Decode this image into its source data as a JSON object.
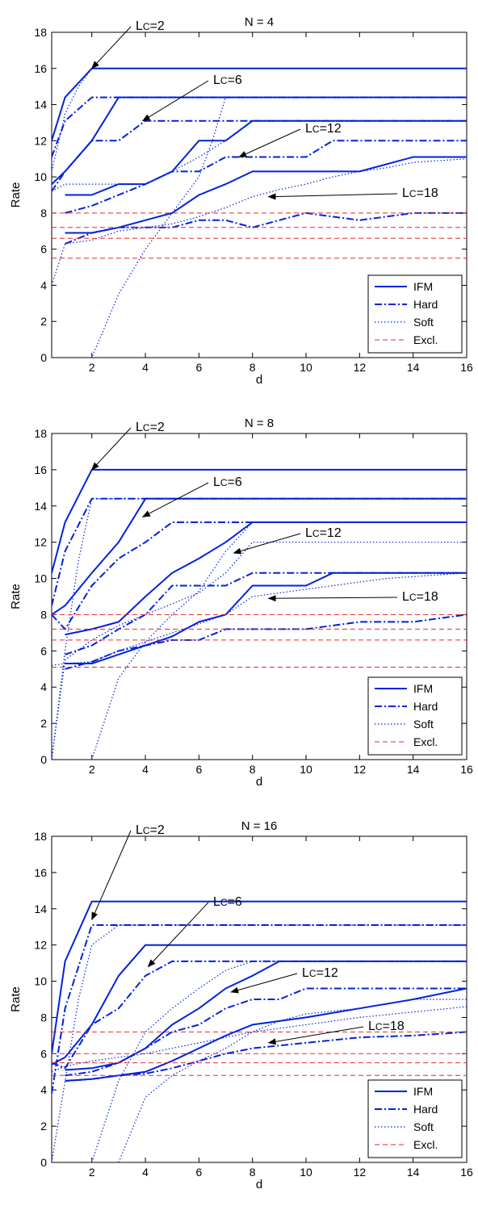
{
  "chart_data": [
    {
      "type": "line",
      "title": "N = 4",
      "xlabel": "d",
      "ylabel": "Rate",
      "xlim": [
        0.5,
        16
      ],
      "ylim": [
        0,
        18
      ],
      "xticks": [
        2,
        4,
        6,
        8,
        10,
        12,
        14,
        16
      ],
      "yticks": [
        0,
        2,
        4,
        6,
        8,
        10,
        12,
        14,
        16,
        18
      ],
      "legend": {
        "placement": "bottom-right",
        "entries": [
          "IFM",
          "Hard",
          "Soft",
          "Excl."
        ]
      },
      "annotations": [
        {
          "text": "LC=2",
          "points_to": [
            2,
            16
          ]
        },
        {
          "text": "LC=6",
          "points_to": [
            3.9,
            13.1
          ]
        },
        {
          "text": "LC=12",
          "points_to": [
            7.5,
            11.1
          ]
        },
        {
          "text": "LC=18",
          "points_to": [
            8.6,
            8.9
          ]
        }
      ],
      "series": [
        {
          "kind": "IFM",
          "x": [
            0.5,
            1,
            2,
            16
          ],
          "y": [
            12,
            14.4,
            16,
            16
          ]
        },
        {
          "kind": "Hard",
          "x": [
            0.5,
            1,
            2,
            16
          ],
          "y": [
            11.1,
            13.1,
            14.4,
            14.4
          ]
        },
        {
          "kind": "Soft",
          "x": [
            0.5,
            1,
            1.5,
            2,
            16
          ],
          "y": [
            10.3,
            13.5,
            15,
            16,
            16
          ]
        },
        {
          "kind": "IFM",
          "x": [
            0.5,
            1,
            2,
            3,
            16
          ],
          "y": [
            9.6,
            10.3,
            12,
            14.4,
            14.4
          ]
        },
        {
          "kind": "Hard",
          "x": [
            0.5,
            1,
            2,
            3,
            4,
            16
          ],
          "y": [
            9.2,
            10.3,
            12,
            12,
            13.1,
            13.1
          ]
        },
        {
          "kind": "Soft",
          "x": [
            0.5,
            1,
            2,
            3,
            4,
            5,
            6,
            6.5,
            7,
            16
          ],
          "y": [
            0,
            0,
            0,
            3.5,
            6,
            8,
            10,
            12,
            14.4,
            14.4
          ]
        },
        {
          "kind": "IFM",
          "x": [
            1,
            2,
            3,
            4,
            5,
            6,
            7,
            8,
            16
          ],
          "y": [
            9,
            9,
            9.6,
            9.6,
            10.3,
            12,
            12,
            13.1,
            13.1
          ]
        },
        {
          "kind": "Hard",
          "x": [
            1,
            2,
            3,
            4,
            5,
            6,
            7,
            8,
            9,
            10,
            11,
            12,
            16
          ],
          "y": [
            8,
            8.4,
            9,
            9.6,
            10.3,
            10.3,
            11.1,
            11.1,
            11.1,
            11.1,
            12,
            12,
            12
          ]
        },
        {
          "kind": "Soft",
          "x": [
            0.5,
            1,
            2,
            3,
            4,
            5,
            6,
            7,
            8,
            16
          ],
          "y": [
            9.2,
            9.6,
            9.6,
            9.6,
            9.6,
            10.3,
            11.1,
            12,
            13.1,
            13.1
          ]
        },
        {
          "kind": "IFM",
          "x": [
            1,
            2,
            3,
            4,
            5,
            6,
            7,
            8,
            12,
            14,
            16
          ],
          "y": [
            6.9,
            6.9,
            7.2,
            7.6,
            8,
            9,
            9.6,
            10.3,
            10.3,
            11.1,
            11.1
          ]
        },
        {
          "kind": "Hard",
          "x": [
            1,
            2,
            3,
            4,
            5,
            6,
            7,
            8,
            9,
            10,
            11,
            12,
            13,
            14,
            16
          ],
          "y": [
            6.3,
            6.9,
            7.2,
            7.2,
            7.2,
            7.6,
            7.6,
            7.2,
            7.6,
            8,
            7.8,
            7.6,
            7.8,
            8,
            8
          ]
        },
        {
          "kind": "Soft",
          "x": [
            0.5,
            1,
            2,
            3,
            4,
            5,
            6,
            7,
            8,
            9,
            10,
            11,
            12,
            13,
            14,
            16
          ],
          "y": [
            4,
            6.3,
            6.5,
            7,
            7.2,
            7.4,
            7.8,
            8.3,
            8.9,
            9.3,
            9.6,
            10,
            10.3,
            10.5,
            10.8,
            11
          ]
        },
        {
          "kind": "Excl.",
          "x": [
            0.5,
            16
          ],
          "y": [
            8,
            8
          ]
        },
        {
          "kind": "Excl.",
          "x": [
            0.5,
            16
          ],
          "y": [
            7.2,
            7.2
          ]
        },
        {
          "kind": "Excl.",
          "x": [
            0.5,
            16
          ],
          "y": [
            6.6,
            6.6
          ]
        },
        {
          "kind": "Excl.",
          "x": [
            0.5,
            16
          ],
          "y": [
            5.5,
            5.5
          ]
        }
      ]
    },
    {
      "type": "line",
      "title": "N = 8",
      "xlabel": "d",
      "ylabel": "Rate",
      "xlim": [
        0.5,
        16
      ],
      "ylim": [
        0,
        18
      ],
      "xticks": [
        2,
        4,
        6,
        8,
        10,
        12,
        14,
        16
      ],
      "yticks": [
        0,
        2,
        4,
        6,
        8,
        10,
        12,
        14,
        16,
        18
      ],
      "legend": {
        "placement": "bottom-right",
        "entries": [
          "IFM",
          "Hard",
          "Soft",
          "Excl."
        ]
      },
      "annotations": [
        {
          "text": "LC=2",
          "points_to": [
            2,
            16
          ]
        },
        {
          "text": "LC=6",
          "points_to": [
            3.9,
            13.4
          ]
        },
        {
          "text": "LC=12",
          "points_to": [
            7.3,
            11.4
          ]
        },
        {
          "text": "LC=18",
          "points_to": [
            8.6,
            8.9
          ]
        }
      ],
      "series": [
        {
          "kind": "IFM",
          "x": [
            0.5,
            1,
            2,
            16
          ],
          "y": [
            10.3,
            13.1,
            16,
            16
          ]
        },
        {
          "kind": "Hard",
          "x": [
            0.5,
            1,
            2,
            16
          ],
          "y": [
            8.5,
            11.5,
            14.4,
            14.4
          ]
        },
        {
          "kind": "Soft",
          "x": [
            0.5,
            1,
            1.5,
            2,
            3,
            4,
            16
          ],
          "y": [
            0,
            6,
            11,
            14.4,
            14.4,
            14.4,
            14.4
          ]
        },
        {
          "kind": "IFM",
          "x": [
            0.5,
            1,
            2,
            3,
            4,
            16
          ],
          "y": [
            8,
            8.5,
            10.3,
            12,
            14.4,
            14.4
          ]
        },
        {
          "kind": "Hard",
          "x": [
            0.5,
            1,
            2,
            3,
            4,
            5,
            16
          ],
          "y": [
            8,
            7.2,
            9.6,
            11.1,
            12,
            13.1,
            13.1
          ]
        },
        {
          "kind": "Soft",
          "x": [
            2,
            3,
            4,
            5,
            6,
            7,
            8,
            16
          ],
          "y": [
            0,
            4.5,
            6.5,
            8,
            9.3,
            11.5,
            13.1,
            13.1
          ]
        },
        {
          "kind": "IFM",
          "x": [
            1,
            2,
            3,
            4,
            5,
            6,
            7,
            8,
            16
          ],
          "y": [
            6.9,
            7.2,
            7.6,
            9,
            10.3,
            11.1,
            12,
            13.1,
            13.1
          ]
        },
        {
          "kind": "Hard",
          "x": [
            1,
            2,
            3,
            4,
            5,
            6,
            7,
            8,
            16
          ],
          "y": [
            5.8,
            6.3,
            7.2,
            8,
            9.6,
            9.6,
            9.6,
            10.3,
            10.3
          ]
        },
        {
          "kind": "Soft",
          "x": [
            0.5,
            1,
            2,
            3,
            4,
            5,
            6,
            7,
            8,
            16
          ],
          "y": [
            0,
            5.5,
            6.6,
            7.4,
            8,
            8.6,
            9.2,
            10.3,
            12,
            12
          ]
        },
        {
          "kind": "IFM",
          "x": [
            1,
            2,
            3,
            4,
            5,
            6,
            7,
            8,
            9,
            10,
            11,
            12,
            16
          ],
          "y": [
            5.3,
            5.3,
            5.8,
            6.3,
            6.8,
            7.6,
            8,
            9.6,
            9.6,
            9.6,
            10.3,
            10.3,
            10.3
          ]
        },
        {
          "kind": "Hard",
          "x": [
            1,
            2,
            3,
            4,
            5,
            6,
            7,
            8,
            9,
            10,
            11,
            12,
            13,
            14,
            16
          ],
          "y": [
            5,
            5.4,
            6,
            6.3,
            6.6,
            6.6,
            7.2,
            7.2,
            7.2,
            7.2,
            7.4,
            7.6,
            7.6,
            7.6,
            8
          ]
        },
        {
          "kind": "Soft",
          "x": [
            0.5,
            1,
            2,
            3,
            4,
            5,
            6,
            7,
            8,
            9,
            10,
            11,
            12,
            13,
            14,
            16
          ],
          "y": [
            5.2,
            5.3,
            5.4,
            6,
            6.5,
            7,
            7.5,
            8,
            9,
            9.2,
            9.4,
            9.6,
            9.8,
            10,
            10.1,
            10.3
          ]
        },
        {
          "kind": "Excl.",
          "x": [
            0.5,
            16
          ],
          "y": [
            8,
            8
          ]
        },
        {
          "kind": "Excl.",
          "x": [
            0.5,
            16
          ],
          "y": [
            7.2,
            7.2
          ]
        },
        {
          "kind": "Excl.",
          "x": [
            0.5,
            16
          ],
          "y": [
            6.6,
            6.6
          ]
        },
        {
          "kind": "Excl.",
          "x": [
            0.5,
            16
          ],
          "y": [
            5.1,
            5.1
          ]
        }
      ]
    },
    {
      "type": "line",
      "title": "N = 16",
      "xlabel": "d",
      "ylabel": "Rate",
      "xlim": [
        0.5,
        16
      ],
      "ylim": [
        0,
        18
      ],
      "xticks": [
        2,
        4,
        6,
        8,
        10,
        12,
        14,
        16
      ],
      "yticks": [
        0,
        2,
        4,
        6,
        8,
        10,
        12,
        14,
        16,
        18
      ],
      "legend": {
        "placement": "bottom-right",
        "entries": [
          "IFM",
          "Hard",
          "Soft",
          "Excl."
        ]
      },
      "annotations": [
        {
          "text": "LC=2",
          "points_to": [
            2,
            13.4
          ]
        },
        {
          "text": "LC=6",
          "points_to": [
            4.1,
            10.8
          ]
        },
        {
          "text": "LC=12",
          "points_to": [
            7.2,
            9.4
          ]
        },
        {
          "text": "LC=18",
          "points_to": [
            8.6,
            6.6
          ]
        }
      ],
      "series": [
        {
          "kind": "IFM",
          "x": [
            0.5,
            1,
            2,
            16
          ],
          "y": [
            6,
            11.1,
            14.4,
            14.4
          ]
        },
        {
          "kind": "Hard",
          "x": [
            0.5,
            1,
            2,
            16
          ],
          "y": [
            3.8,
            8.5,
            13.1,
            13.1
          ]
        },
        {
          "kind": "Soft",
          "x": [
            0.5,
            1,
            1.5,
            2,
            3,
            4,
            16
          ],
          "y": [
            0,
            4.5,
            9,
            12,
            13.1,
            13.1,
            13.1
          ]
        },
        {
          "kind": "IFM",
          "x": [
            0.5,
            1,
            2,
            3,
            4,
            16
          ],
          "y": [
            5.4,
            5.8,
            7.6,
            10.3,
            12,
            12
          ]
        },
        {
          "kind": "Hard",
          "x": [
            0.5,
            1,
            2,
            3,
            4,
            5,
            16
          ],
          "y": [
            5.5,
            5.2,
            7.6,
            8.5,
            10.3,
            11.1,
            11.1
          ]
        },
        {
          "kind": "Soft",
          "x": [
            2,
            3,
            4,
            5,
            6,
            7,
            8,
            16
          ],
          "y": [
            0,
            4.5,
            7.2,
            8.5,
            9.6,
            10.6,
            11.1,
            11.1
          ]
        },
        {
          "kind": "IFM",
          "x": [
            1,
            2,
            3,
            4,
            5,
            6,
            7,
            8,
            9,
            16
          ],
          "y": [
            5.1,
            5.2,
            5.5,
            6.3,
            7.6,
            8.5,
            9.6,
            10.3,
            11.1,
            11.1
          ]
        },
        {
          "kind": "Hard",
          "x": [
            1,
            2,
            3,
            4,
            5,
            6,
            7,
            8,
            9,
            10,
            16
          ],
          "y": [
            4.8,
            5,
            5.5,
            6.3,
            7.2,
            7.6,
            8.5,
            9,
            9,
            9.6,
            9.6
          ]
        },
        {
          "kind": "Soft",
          "x": [
            3,
            4,
            5,
            6,
            7,
            8,
            9,
            10,
            12,
            14,
            16
          ],
          "y": [
            0,
            3.6,
            4.8,
            5.6,
            6.3,
            7.2,
            7.8,
            8.2,
            8.5,
            9,
            9
          ]
        },
        {
          "kind": "IFM",
          "x": [
            1,
            2,
            3,
            4,
            5,
            6,
            7,
            8,
            10,
            12,
            14,
            16
          ],
          "y": [
            4.5,
            4.6,
            4.8,
            5,
            5.6,
            6.3,
            7,
            7.6,
            8,
            8.5,
            9,
            9.6
          ]
        },
        {
          "kind": "Hard",
          "x": [
            1,
            2,
            3,
            4,
            5,
            6,
            7,
            8,
            10,
            12,
            14,
            16
          ],
          "y": [
            4.5,
            4.6,
            4.8,
            4.9,
            5.2,
            5.6,
            6,
            6.3,
            6.6,
            6.9,
            7,
            7.2
          ]
        },
        {
          "kind": "Soft",
          "x": [
            0.5,
            1,
            2,
            3,
            4,
            5,
            6,
            7,
            8,
            10,
            12,
            14,
            16
          ],
          "y": [
            5,
            5.3,
            5.6,
            5.8,
            6,
            6.3,
            6.6,
            6.9,
            7.2,
            7.6,
            8,
            8.3,
            8.6
          ]
        },
        {
          "kind": "Excl.",
          "x": [
            0.5,
            16
          ],
          "y": [
            7.2,
            7.2
          ]
        },
        {
          "kind": "Excl.",
          "x": [
            0.5,
            16
          ],
          "y": [
            6,
            6
          ]
        },
        {
          "kind": "Excl.",
          "x": [
            0.5,
            16
          ],
          "y": [
            5.5,
            5.5
          ]
        },
        {
          "kind": "Excl.",
          "x": [
            0.5,
            16
          ],
          "y": [
            4.8,
            4.8
          ]
        }
      ]
    }
  ],
  "styles": {
    "line_color": "#0022dd",
    "excl_color": "#e8262b",
    "dash": {
      "IFM": "",
      "Hard": "9 3 2 3",
      "Soft": "1.5 2.5",
      "Excl.": "6 4"
    }
  }
}
